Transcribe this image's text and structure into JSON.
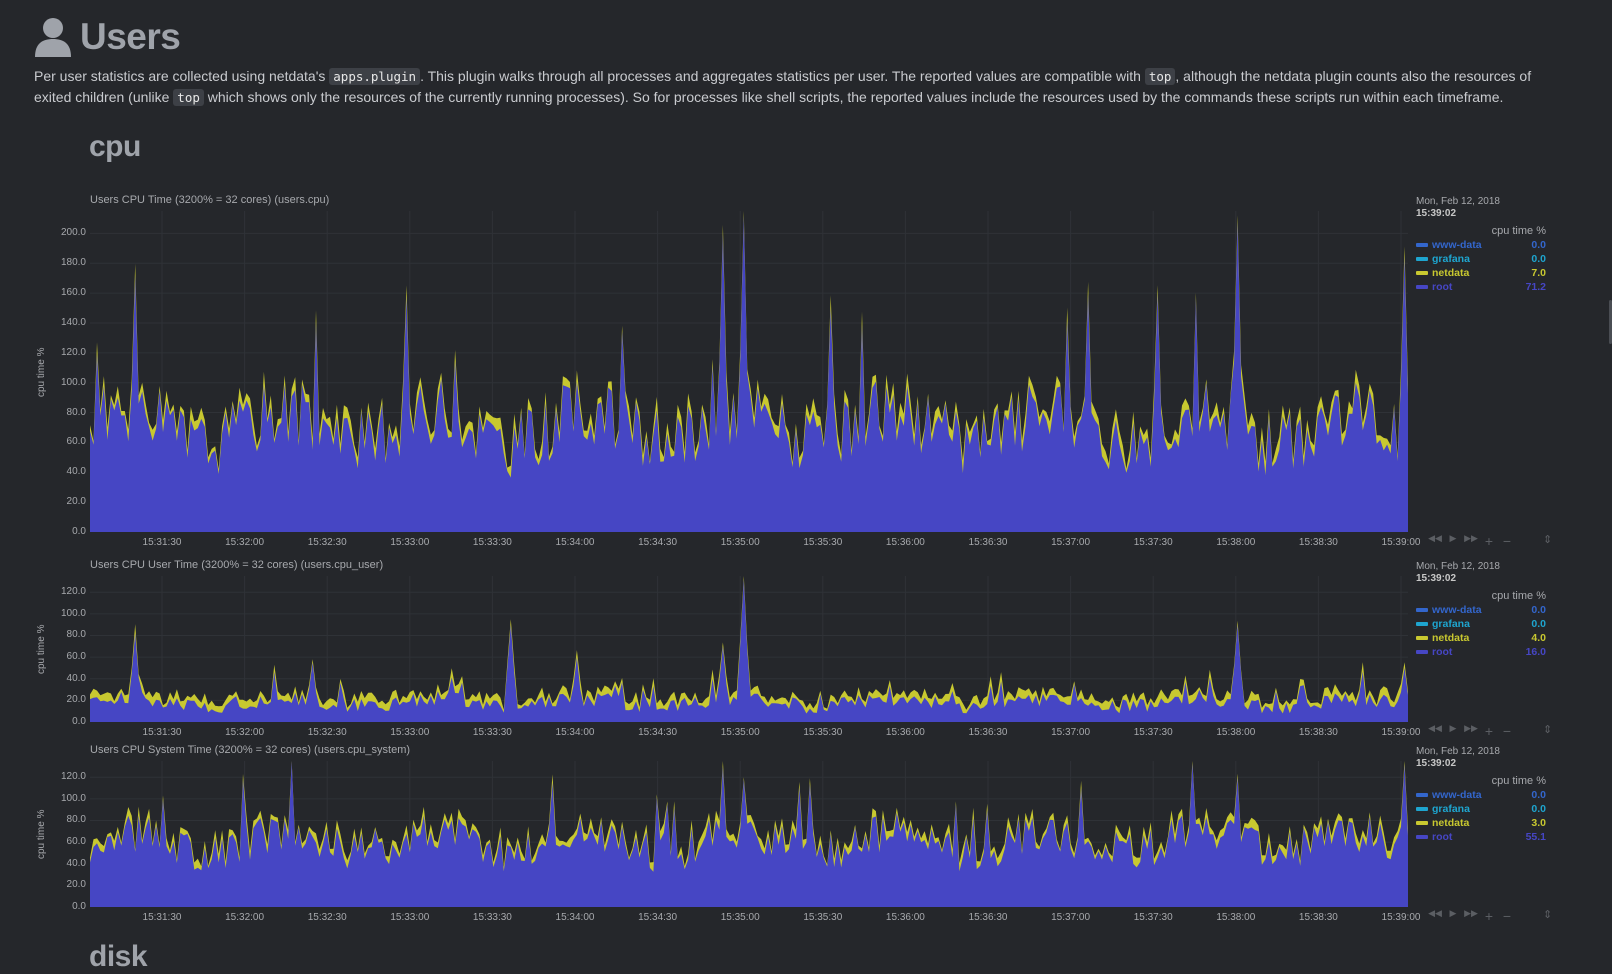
{
  "page": {
    "title": "Users",
    "intro_parts": [
      "Per user statistics are collected using netdata's ",
      "apps.plugin",
      ". This plugin walks through all processes and aggregates statistics per user. The reported values are compatible with ",
      "top",
      ", although the netdata plugin counts also the resources of exited children (unlike ",
      "top",
      " which shows only the resources of the currently running processes). So for processes like shell scripts, the reported values include the resources used by the commands these scripts run within each timeframe."
    ]
  },
  "sections": {
    "cpu": "cpu",
    "disk": "disk"
  },
  "colors": {
    "www-data": "#3366cc",
    "grafana": "#1ea5cf",
    "netdata": "#c8c830",
    "root": "#4646c4",
    "background": "#25272b"
  },
  "legend_common": {
    "date": "Mon, Feb 12, 2018",
    "time": "15:39:02",
    "units": "cpu time %"
  },
  "toolbar_icons": [
    "rewind-icon",
    "play-icon",
    "fast-forward-icon",
    "zoom-in-icon",
    "zoom-out-icon",
    "resize-icon"
  ],
  "chart_data": [
    {
      "type": "area",
      "id": "users.cpu",
      "title": "Users CPU Time (3200% = 32 cores) (users.cpu)",
      "ylabel": "cpu time %",
      "yticks": [
        "0.0",
        "20.0",
        "40.0",
        "60.0",
        "80.0",
        "100.0",
        "120.0",
        "140.0",
        "160.0",
        "180.0",
        "200.0"
      ],
      "ylim": [
        0,
        215
      ],
      "xticks": [
        "15:31:30",
        "15:32:00",
        "15:32:30",
        "15:33:00",
        "15:33:30",
        "15:34:00",
        "15:34:30",
        "15:35:00",
        "15:35:30",
        "15:36:00",
        "15:36:30",
        "15:37:00",
        "15:37:30",
        "15:38:00",
        "15:38:30",
        "15:39:00"
      ],
      "legend": [
        {
          "name": "www-data",
          "value": "0.0"
        },
        {
          "name": "grafana",
          "value": "0.0"
        },
        {
          "name": "netdata",
          "value": "7.0"
        },
        {
          "name": "root",
          "value": "71.2"
        }
      ]
    },
    {
      "type": "area",
      "id": "users.cpu_user",
      "title": "Users CPU User Time (3200% = 32 cores) (users.cpu_user)",
      "ylabel": "cpu time %",
      "yticks": [
        "0.0",
        "20.0",
        "40.0",
        "60.0",
        "80.0",
        "100.0",
        "120.0"
      ],
      "ylim": [
        0,
        135
      ],
      "xticks": [
        "15:31:30",
        "15:32:00",
        "15:32:30",
        "15:33:00",
        "15:33:30",
        "15:34:00",
        "15:34:30",
        "15:35:00",
        "15:35:30",
        "15:36:00",
        "15:36:30",
        "15:37:00",
        "15:37:30",
        "15:38:00",
        "15:38:30",
        "15:39:00"
      ],
      "legend": [
        {
          "name": "www-data",
          "value": "0.0"
        },
        {
          "name": "grafana",
          "value": "0.0"
        },
        {
          "name": "netdata",
          "value": "4.0"
        },
        {
          "name": "root",
          "value": "16.0"
        }
      ]
    },
    {
      "type": "area",
      "id": "users.cpu_system",
      "title": "Users CPU System Time (3200% = 32 cores) (users.cpu_system)",
      "ylabel": "cpu time %",
      "yticks": [
        "0.0",
        "20.0",
        "40.0",
        "60.0",
        "80.0",
        "100.0",
        "120.0"
      ],
      "ylim": [
        0,
        135
      ],
      "xticks": [
        "15:31:30",
        "15:32:00",
        "15:32:30",
        "15:33:00",
        "15:33:30",
        "15:34:00",
        "15:34:30",
        "15:35:00",
        "15:35:30",
        "15:36:00",
        "15:36:30",
        "15:37:00",
        "15:37:30",
        "15:38:00",
        "15:38:30",
        "15:39:00"
      ],
      "legend": [
        {
          "name": "www-data",
          "value": "0.0"
        },
        {
          "name": "grafana",
          "value": "0.0"
        },
        {
          "name": "netdata",
          "value": "3.0"
        },
        {
          "name": "root",
          "value": "55.1"
        }
      ]
    }
  ]
}
